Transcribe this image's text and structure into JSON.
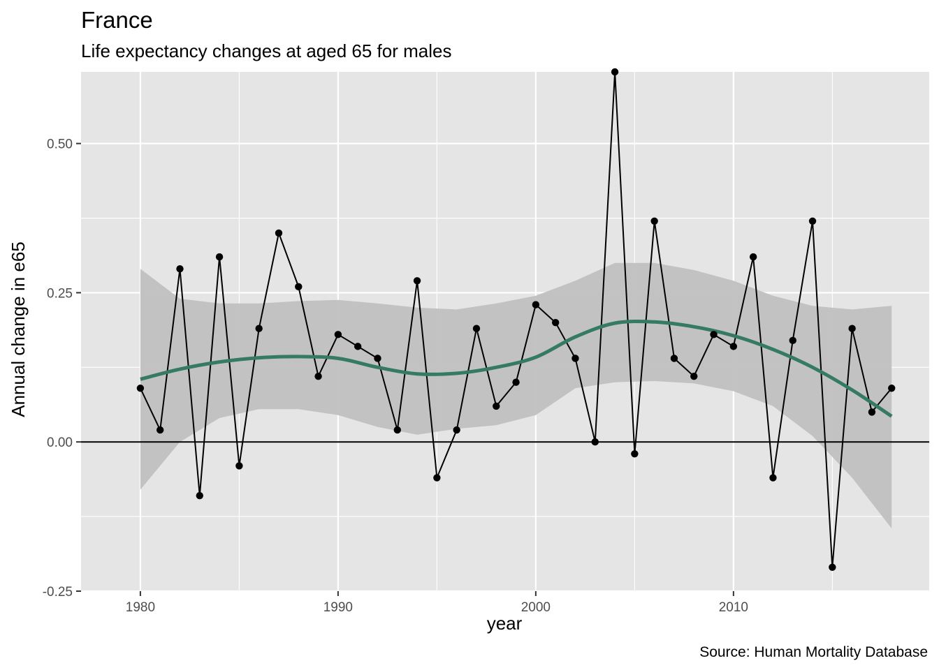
{
  "chart_data": {
    "type": "line",
    "title": "France",
    "subtitle": "Life expectancy changes at aged 65 for males",
    "xlabel": "year",
    "ylabel": "Annual change in e65",
    "caption": "Source: Human Mortality Database",
    "xlim": [
      1977,
      2019.9
    ],
    "ylim": [
      -0.25,
      0.62
    ],
    "x_ticks": [
      1980,
      1990,
      2000,
      2010
    ],
    "x_tick_labels": [
      "1980",
      "1990",
      "2000",
      "2010"
    ],
    "y_ticks": [
      -0.25,
      0.0,
      0.25,
      0.5
    ],
    "y_tick_labels": [
      "-0.25",
      "0.00",
      "0.25",
      "0.50"
    ],
    "hline": 0,
    "grid": true,
    "colors": {
      "panel": "#e5e5e5",
      "grid": "#ffffff",
      "series": "#000000",
      "smooth": "#357a64",
      "ribbon": "#c0c0c0"
    },
    "series": [
      {
        "x": [
          1980,
          1981,
          1982,
          1983,
          1984,
          1985,
          1986,
          1987,
          1988,
          1989,
          1990,
          1991,
          1992,
          1993,
          1994,
          1995,
          1996,
          1997,
          1998,
          1999,
          2000,
          2001,
          2002,
          2003,
          2004,
          2005,
          2006,
          2007,
          2008,
          2009,
          2010,
          2011,
          2012,
          2013,
          2014,
          2015,
          2016,
          2017,
          2018
        ],
        "values": [
          0.09,
          0.02,
          0.29,
          -0.09,
          0.31,
          -0.04,
          0.19,
          0.35,
          0.26,
          0.11,
          0.18,
          0.16,
          0.14,
          0.02,
          0.27,
          -0.06,
          0.02,
          0.19,
          0.06,
          0.1,
          0.23,
          0.2,
          0.14,
          0.0,
          0.62,
          -0.02,
          0.37,
          0.14,
          0.11,
          0.18,
          0.16,
          0.31,
          -0.06,
          0.17,
          0.37,
          -0.21,
          0.19,
          0.05,
          0.09
        ]
      }
    ],
    "smooth": {
      "x": [
        1980,
        1982,
        1984,
        1986,
        1988,
        1990,
        1992,
        1994,
        1996,
        1998,
        2000,
        2002,
        2004,
        2006,
        2008,
        2010,
        2012,
        2014,
        2016,
        2018
      ],
      "values": [
        0.105,
        0.122,
        0.134,
        0.141,
        0.143,
        0.14,
        0.125,
        0.114,
        0.115,
        0.125,
        0.142,
        0.176,
        0.199,
        0.201,
        0.193,
        0.178,
        0.155,
        0.125,
        0.087,
        0.043
      ],
      "lower": [
        -0.08,
        0.0,
        0.04,
        0.055,
        0.055,
        0.045,
        0.025,
        0.012,
        0.022,
        0.028,
        0.045,
        0.09,
        0.1,
        0.102,
        0.098,
        0.085,
        0.06,
        0.01,
        -0.06,
        -0.145
      ],
      "upper": [
        0.29,
        0.24,
        0.232,
        0.232,
        0.236,
        0.238,
        0.232,
        0.225,
        0.222,
        0.232,
        0.245,
        0.27,
        0.3,
        0.3,
        0.288,
        0.27,
        0.245,
        0.228,
        0.222,
        0.228
      ]
    }
  }
}
